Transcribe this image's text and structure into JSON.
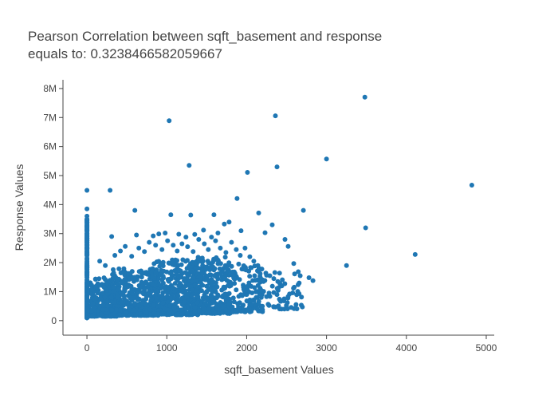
{
  "colors": {
    "marker": "#1f77b4",
    "text": "#444444",
    "axis": "#444444",
    "background": "#ffffff"
  },
  "chart_data": {
    "type": "scatter",
    "title": [
      "Pearson Correlation between sqft_basement and response",
      "equals to: 0.3238466582059667"
    ],
    "xlabel": "sqft_basement Values",
    "ylabel": "Response Values",
    "xlim": [
      -300,
      5100
    ],
    "ylim": [
      -500000,
      8300000
    ],
    "xticks": [
      0,
      1000,
      2000,
      3000,
      4000,
      5000
    ],
    "xtick_labels": [
      "0",
      "1000",
      "2000",
      "3000",
      "4000",
      "5000"
    ],
    "yticks": [
      0,
      1000000,
      2000000,
      3000000,
      4000000,
      5000000,
      6000000,
      7000000,
      8000000
    ],
    "ytick_labels": [
      "0",
      "1M",
      "2M",
      "3M",
      "4M",
      "5M",
      "6M",
      "7M",
      "8M"
    ],
    "grid": false,
    "legend": "none",
    "points": [
      [
        3480,
        7700000
      ],
      [
        2360,
        7060000
      ],
      [
        1030,
        6890000
      ],
      [
        3000,
        5570000
      ],
      [
        1280,
        5350000
      ],
      [
        2380,
        5300000
      ],
      [
        2010,
        5110000
      ],
      [
        4820,
        4670000
      ],
      [
        0,
        4490000
      ],
      [
        290,
        4490000
      ],
      [
        1880,
        4210000
      ],
      [
        0,
        3850000
      ],
      [
        600,
        3800000
      ],
      [
        2710,
        3800000
      ],
      [
        2150,
        3710000
      ],
      [
        1050,
        3650000
      ],
      [
        1590,
        3650000
      ],
      [
        1300,
        3640000
      ],
      [
        3490,
        3200000
      ],
      [
        4110,
        2280000
      ],
      [
        3250,
        1900000
      ],
      [
        2780,
        1480000
      ],
      [
        2830,
        1380000
      ],
      [
        2670,
        1550000
      ],
      [
        2590,
        1970000
      ],
      [
        2520,
        2560000
      ],
      [
        2230,
        3030000
      ],
      [
        2320,
        3300000
      ],
      [
        2480,
        2800000
      ],
      [
        1930,
        3100000
      ],
      [
        1780,
        3400000
      ],
      [
        1720,
        3330000
      ],
      [
        1640,
        3020000
      ],
      [
        1560,
        2880000
      ],
      [
        1460,
        3120000
      ],
      [
        1350,
        2970000
      ],
      [
        1240,
        2880000
      ],
      [
        1150,
        2980000
      ],
      [
        980,
        3020000
      ],
      [
        900,
        2990000
      ],
      [
        830,
        2920000
      ],
      [
        620,
        2950000
      ],
      [
        310,
        2900000
      ],
      [
        0,
        3600000
      ],
      [
        0,
        3400000
      ],
      [
        0,
        3300000
      ],
      [
        0,
        3150000
      ],
      [
        0,
        2950000
      ],
      [
        0,
        2750000
      ],
      [
        0,
        2600000
      ],
      [
        0,
        2450000
      ],
      [
        0,
        2300000
      ],
      [
        0,
        2150000
      ],
      [
        0,
        2000000
      ],
      [
        0,
        1900000
      ],
      [
        0,
        1800000
      ],
      [
        0,
        1700000
      ],
      [
        0,
        1600000
      ],
      [
        0,
        1500000
      ],
      [
        0,
        1400000
      ],
      [
        0,
        1300000
      ],
      [
        0,
        1200000
      ],
      [
        0,
        1100000
      ],
      [
        0,
        1000000
      ],
      [
        0,
        900000
      ],
      [
        0,
        800000
      ],
      [
        0,
        700000
      ],
      [
        0,
        600000
      ],
      [
        0,
        500000
      ],
      [
        0,
        400000
      ],
      [
        0,
        300000
      ],
      [
        0,
        200000
      ],
      [
        0,
        100000
      ],
      [
        0,
        3500000
      ],
      [
        0,
        3250000
      ],
      [
        0,
        2850000
      ],
      [
        160,
        2050000
      ],
      [
        230,
        1900000
      ],
      [
        350,
        2250000
      ],
      [
        420,
        2400000
      ],
      [
        480,
        2560000
      ],
      [
        560,
        2220000
      ],
      [
        650,
        2500000
      ],
      [
        720,
        2380000
      ],
      [
        780,
        2700000
      ],
      [
        860,
        2600000
      ],
      [
        940,
        2450000
      ],
      [
        1010,
        2750000
      ],
      [
        1080,
        2600000
      ],
      [
        1130,
        2400000
      ],
      [
        1190,
        2650000
      ],
      [
        1260,
        2550000
      ],
      [
        1330,
        2380000
      ],
      [
        1400,
        2800000
      ],
      [
        1470,
        2650000
      ],
      [
        1520,
        2450000
      ],
      [
        1610,
        2750000
      ],
      [
        1670,
        2500000
      ],
      [
        1740,
        2350000
      ],
      [
        1810,
        2700000
      ],
      [
        1870,
        2450000
      ],
      [
        1920,
        2250000
      ],
      [
        1980,
        2500000
      ],
      [
        2040,
        2200000
      ],
      [
        2090,
        2050000
      ],
      [
        2140,
        1900000
      ],
      [
        2190,
        1780000
      ],
      [
        2240,
        1640000
      ],
      [
        2290,
        1550000
      ],
      [
        2340,
        1450000
      ],
      [
        2390,
        1350000
      ],
      [
        2440,
        1200000
      ],
      [
        2180,
        1050000
      ],
      [
        2280,
        950000
      ],
      [
        2120,
        800000
      ],
      [
        2060,
        700000
      ],
      [
        2380,
        900000
      ],
      [
        2470,
        750000
      ],
      [
        2210,
        1350000
      ],
      [
        2100,
        1550000
      ],
      [
        1990,
        1750000
      ],
      [
        1900,
        1950000
      ],
      [
        2030,
        1300000
      ],
      [
        1960,
        1150000
      ]
    ],
    "clusters": [
      {
        "x": [
          0,
          0
        ],
        "y": [
          100000,
          3500000
        ],
        "n": 220
      },
      {
        "x": [
          30,
          400
        ],
        "y": [
          150000,
          1500000
        ],
        "n": 260
      },
      {
        "x": [
          300,
          900
        ],
        "y": [
          180000,
          1800000
        ],
        "n": 420
      },
      {
        "x": [
          800,
          1400
        ],
        "y": [
          200000,
          2100000
        ],
        "n": 420
      },
      {
        "x": [
          1300,
          1800
        ],
        "y": [
          250000,
          2200000
        ],
        "n": 300
      },
      {
        "x": [
          1700,
          2200
        ],
        "y": [
          300000,
          1900000
        ],
        "n": 150
      },
      {
        "x": [
          2100,
          2700
        ],
        "y": [
          400000,
          1700000
        ],
        "n": 60
      }
    ]
  }
}
